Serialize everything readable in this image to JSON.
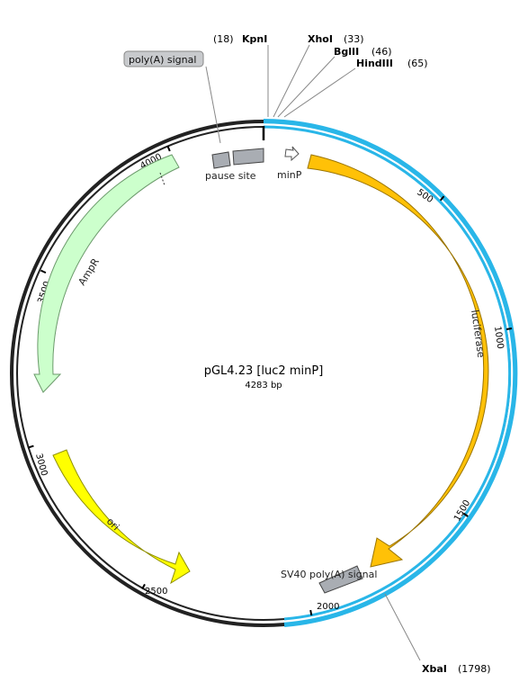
{
  "plasmid": {
    "name": "pGL4.23 [luc2 minP]",
    "length_label": "4283 bp"
  },
  "features": {
    "luc2": {
      "label": "luciferase",
      "color": "#FFC107",
      "stroke": "#9a7400"
    },
    "ampr": {
      "label": "AmpR",
      "color": "#CCFFCC",
      "stroke": "#6b9a6b"
    },
    "ori": {
      "label": "ori",
      "color": "#FFFF00",
      "stroke": "#8f8f00"
    },
    "minp": {
      "label": "minP",
      "color": "#FFFFFF",
      "stroke": "#555555"
    },
    "pause_site": {
      "label": "pause site",
      "color": "#A9ADB3",
      "stroke": "#444444"
    },
    "polya_small": {
      "label": "poly(A) signal",
      "color": "#A9ADB3",
      "stroke": "#444444"
    },
    "sv40_polya": {
      "label": "SV40 poly(A) signal",
      "color": "#A9ADB3",
      "stroke": "#444444"
    }
  },
  "ticks": {
    "t500": "500",
    "t1000": "1000",
    "t1500": "1500",
    "t2000": "2000",
    "t2500": "2500",
    "t3000": "3000",
    "t3500": "3500",
    "t4000": "4000"
  },
  "sites": {
    "kpni": {
      "name": "KpnI",
      "pos": "(18)"
    },
    "xhoi": {
      "name": "XhoI",
      "pos": "(33)"
    },
    "bglii": {
      "name": "BglII",
      "pos": "(46)"
    },
    "hindiii": {
      "name": "HindIII",
      "pos": "(65)"
    },
    "xbai": {
      "name": "XbaI",
      "pos": "(1798)"
    }
  },
  "colors": {
    "backbone": "#222222",
    "insert": "#29B6E8",
    "callout_box": "#C8CACD"
  }
}
